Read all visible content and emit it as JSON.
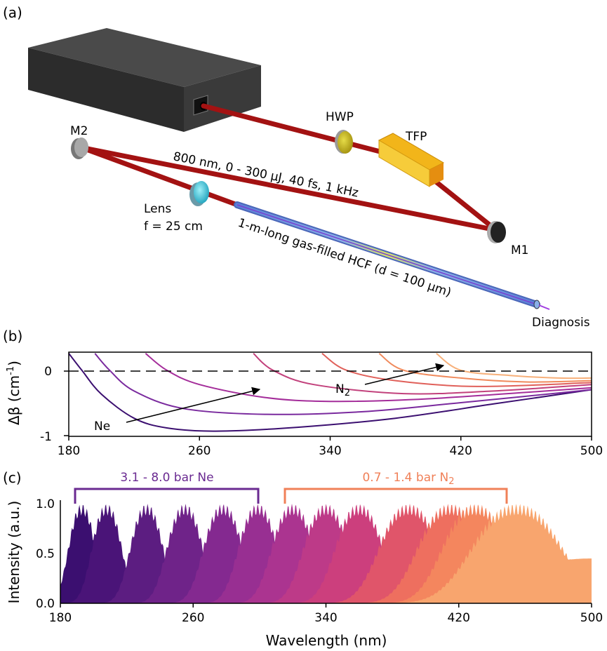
{
  "panel_a": {
    "label": "(a)",
    "hwp": "HWP",
    "tfp": "TFP",
    "m1": "M1",
    "m2": "M2",
    "lens_line1": "Lens",
    "lens_line2": "f = 25 cm",
    "beam_params": "800 nm, 0 - 300 μJ, 40 fs, 1 kHz",
    "hcf": "1-m-long gas-filled HCF (d = 100 μm)",
    "diagnosis": "Diagnosis",
    "colors": {
      "beam": "#a31212",
      "laser_top": "#4a4a4a",
      "laser_front": "#2e2e2e",
      "laser_side": "#3c3c3c",
      "hcf": "#6f8fd8",
      "hwp": "#c8b81c",
      "tfp": "#f4c11e",
      "lens": "#5ecfe0"
    }
  },
  "panel_b": {
    "label": "(b)",
    "ylabel_base": "Δβ (cm",
    "ylabel_exp": "-1",
    "ylabel_close": ")",
    "ne_label": "Ne",
    "n2_label": "N",
    "n2_sub": "2",
    "x_ticks": [
      "180",
      "260",
      "340",
      "420",
      "500"
    ],
    "y_ticks": [
      "0",
      "-1"
    ]
  },
  "panel_c": {
    "label": "(c)",
    "ne_bracket": "3.1 - 8.0 bar Ne",
    "n2_bracket_base": "0.7 - 1.4 bar N",
    "n2_bracket_sub": "2",
    "ylabel": "Intensity (a.u.)",
    "xlabel": "Wavelength (nm)",
    "x_ticks": [
      "180",
      "260",
      "340",
      "420",
      "500"
    ],
    "y_ticks": [
      "0.0",
      "0.5",
      "1.0"
    ],
    "ne_color": "#6a2a91",
    "n2_color": "#f08058"
  },
  "chart_data": [
    {
      "type": "line",
      "xlim": [
        180,
        500
      ],
      "ylim": [
        -1,
        0.3
      ],
      "grid": false,
      "series": [
        {
          "min_x": 270,
          "min_y": -0.92,
          "color": "#3b0f70",
          "values": [
            [
              180,
              0.28
            ],
            [
              188,
              0.02
            ],
            [
              200,
              -0.35
            ],
            [
              220,
              -0.72
            ],
            [
              240,
              -0.87
            ],
            [
              270,
              -0.92
            ],
            [
              320,
              -0.86
            ],
            [
              380,
              -0.72
            ],
            [
              440,
              -0.5
            ],
            [
              500,
              -0.28
            ]
          ]
        },
        {
          "min_x": 300,
          "min_y": -0.66,
          "color": "#7a2a9e",
          "values": [
            [
              196,
              0.28
            ],
            [
              205,
              0.02
            ],
            [
              220,
              -0.3
            ],
            [
              250,
              -0.57
            ],
            [
              300,
              -0.66
            ],
            [
              360,
              -0.62
            ],
            [
              420,
              -0.48
            ],
            [
              500,
              -0.28
            ]
          ]
        },
        {
          "min_x": 340,
          "min_y": -0.46,
          "color": "#a42d9a",
          "values": [
            [
              227,
              0.28
            ],
            [
              240,
              0.02
            ],
            [
              260,
              -0.2
            ],
            [
              300,
              -0.4
            ],
            [
              340,
              -0.46
            ],
            [
              400,
              -0.42
            ],
            [
              500,
              -0.25
            ]
          ]
        },
        {
          "min_x": 385,
          "min_y": -0.34,
          "color": "#c2417c",
          "values": [
            [
              293,
              0.28
            ],
            [
              305,
              0.02
            ],
            [
              330,
              -0.2
            ],
            [
              385,
              -0.34
            ],
            [
              440,
              -0.3
            ],
            [
              500,
              -0.2
            ]
          ]
        },
        {
          "min_x": 430,
          "min_y": -0.23,
          "color": "#e0605a",
          "values": [
            [
              335,
              0.28
            ],
            [
              350,
              0.02
            ],
            [
              380,
              -0.14
            ],
            [
              430,
              -0.23
            ],
            [
              500,
              -0.17
            ]
          ]
        },
        {
          "min_x": 460,
          "min_y": -0.16,
          "color": "#f08a5c",
          "values": [
            [
              370,
              0.28
            ],
            [
              385,
              0.02
            ],
            [
              420,
              -0.1
            ],
            [
              460,
              -0.16
            ],
            [
              500,
              -0.14
            ]
          ]
        },
        {
          "min_x": 480,
          "min_y": -0.1,
          "color": "#f7b07a",
          "values": [
            [
              405,
              0.28
            ],
            [
              420,
              0.02
            ],
            [
              450,
              -0.06
            ],
            [
              480,
              -0.1
            ],
            [
              500,
              -0.1
            ]
          ]
        }
      ]
    },
    {
      "type": "area",
      "xlim": [
        180,
        500
      ],
      "ylim": [
        0,
        1.0
      ],
      "peaks": [
        {
          "center": 193,
          "width": 9,
          "color": "#3b0f70"
        },
        {
          "center": 208,
          "width": 10,
          "color": "#4a1478"
        },
        {
          "center": 232,
          "width": 11,
          "color": "#5c1d81"
        },
        {
          "center": 255,
          "width": 12,
          "color": "#6f2389"
        },
        {
          "center": 278,
          "width": 13,
          "color": "#842990"
        },
        {
          "center": 299,
          "width": 13,
          "color": "#982f92"
        },
        {
          "center": 320,
          "width": 14,
          "color": "#ab3490"
        },
        {
          "center": 340,
          "width": 15,
          "color": "#bd3a88"
        },
        {
          "center": 360,
          "width": 16,
          "color": "#cc3f7d"
        },
        {
          "center": 390,
          "width": 20,
          "color": "#e0556a"
        },
        {
          "center": 415,
          "width": 22,
          "color": "#ee6f5f"
        },
        {
          "center": 430,
          "width": 22,
          "color": "#f4865e"
        },
        {
          "center": 455,
          "width": 30,
          "color": "#f8a56e"
        }
      ]
    }
  ]
}
